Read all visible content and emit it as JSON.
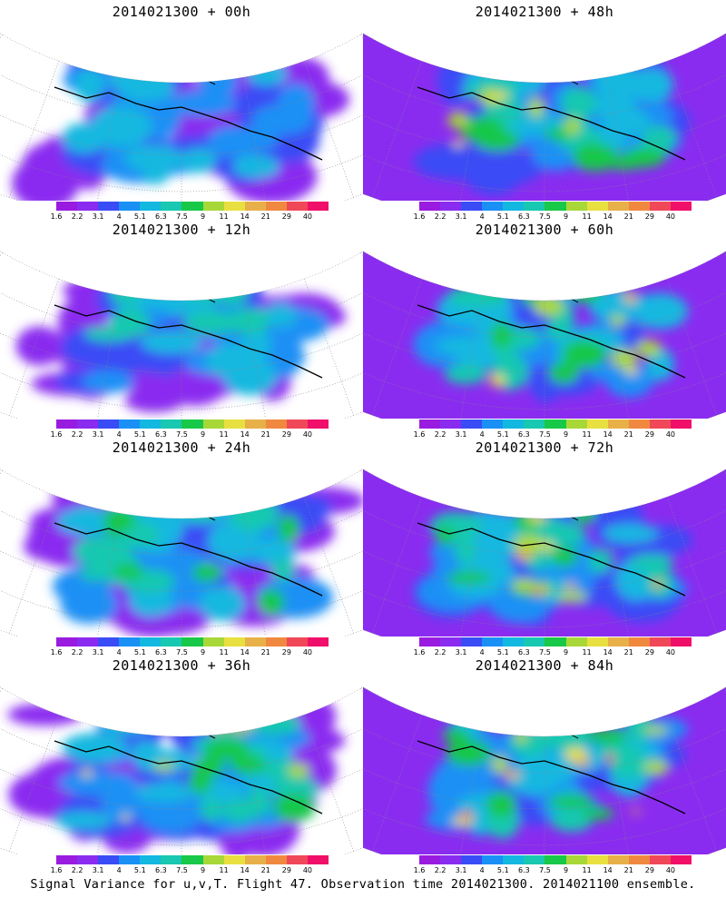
{
  "panels": [
    {
      "title": "2014021300 + 00h",
      "col": 0,
      "row": 0,
      "intensity": 0.0
    },
    {
      "title": "2014021300 + 12h",
      "col": 0,
      "row": 1,
      "intensity": 0.15
    },
    {
      "title": "2014021300 + 24h",
      "col": 0,
      "row": 2,
      "intensity": 0.3
    },
    {
      "title": "2014021300 + 36h",
      "col": 0,
      "row": 3,
      "intensity": 0.45
    },
    {
      "title": "2014021300 + 48h",
      "col": 1,
      "row": 0,
      "intensity": 0.55
    },
    {
      "title": "2014021300 + 60h",
      "col": 1,
      "row": 1,
      "intensity": 0.65
    },
    {
      "title": "2014021300 + 72h",
      "col": 1,
      "row": 2,
      "intensity": 0.75
    },
    {
      "title": "2014021300 + 84h",
      "col": 1,
      "row": 3,
      "intensity": 0.85
    }
  ],
  "legend": {
    "labels": [
      "1.6",
      "2.2",
      "3.1",
      "4",
      "5.1",
      "6.3",
      "7.5",
      "9",
      "11",
      "14",
      "21",
      "29",
      "40"
    ],
    "colors": [
      "#9a1be0",
      "#8a2cf0",
      "#3a4cf5",
      "#1a90f5",
      "#13b8e0",
      "#18c8b0",
      "#18c848",
      "#a8d838",
      "#e8e040",
      "#e8b048",
      "#f08840",
      "#f04858",
      "#f0106a"
    ]
  },
  "caption": "Signal Variance for u,v,T. Flight 47. Observation time 2014021300. 2014021100 ensemble."
}
